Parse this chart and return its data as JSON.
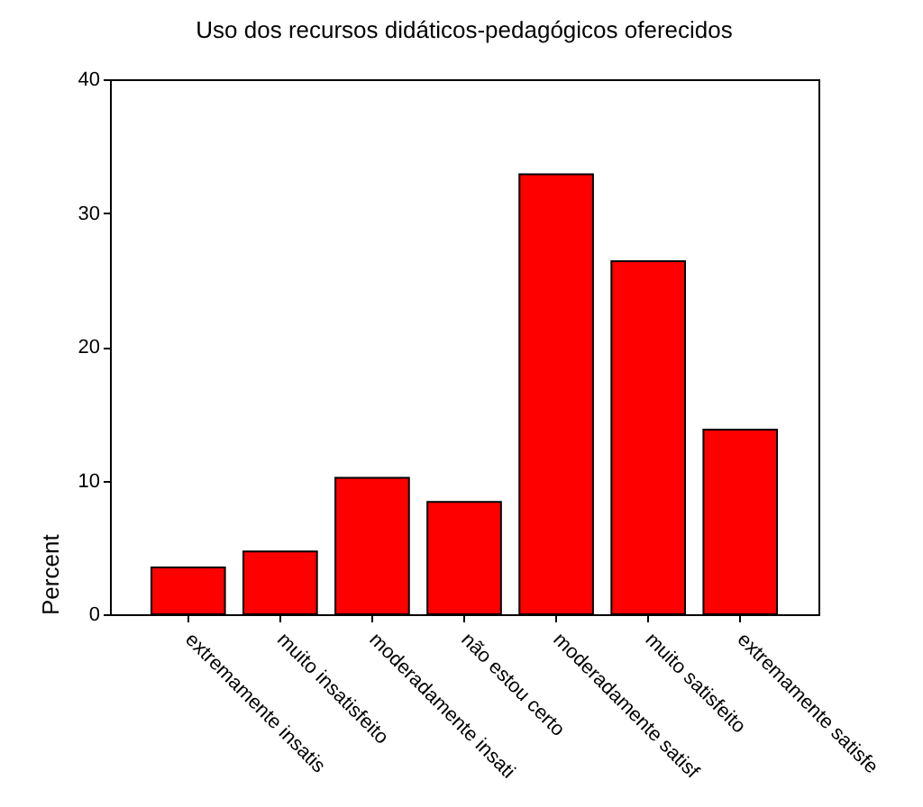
{
  "chart_data": {
    "type": "bar",
    "title": "Uso dos recursos didáticos-pedagógicos oferecidos",
    "ylabel": "Percent",
    "categories": [
      "extremamente insatis",
      "muito insatisfeito",
      "moderadamente insati",
      "não estou certo",
      "moderadamente satisf",
      "muito satisfeito",
      "extremamente satisfe"
    ],
    "values": [
      3.5,
      4.7,
      10.2,
      8.4,
      32.9,
      26.4,
      13.8
    ],
    "color": "#ff0000",
    "ylim": [
      0,
      40
    ],
    "yticks": [
      0,
      10,
      20,
      30,
      40
    ],
    "grid": false
  }
}
